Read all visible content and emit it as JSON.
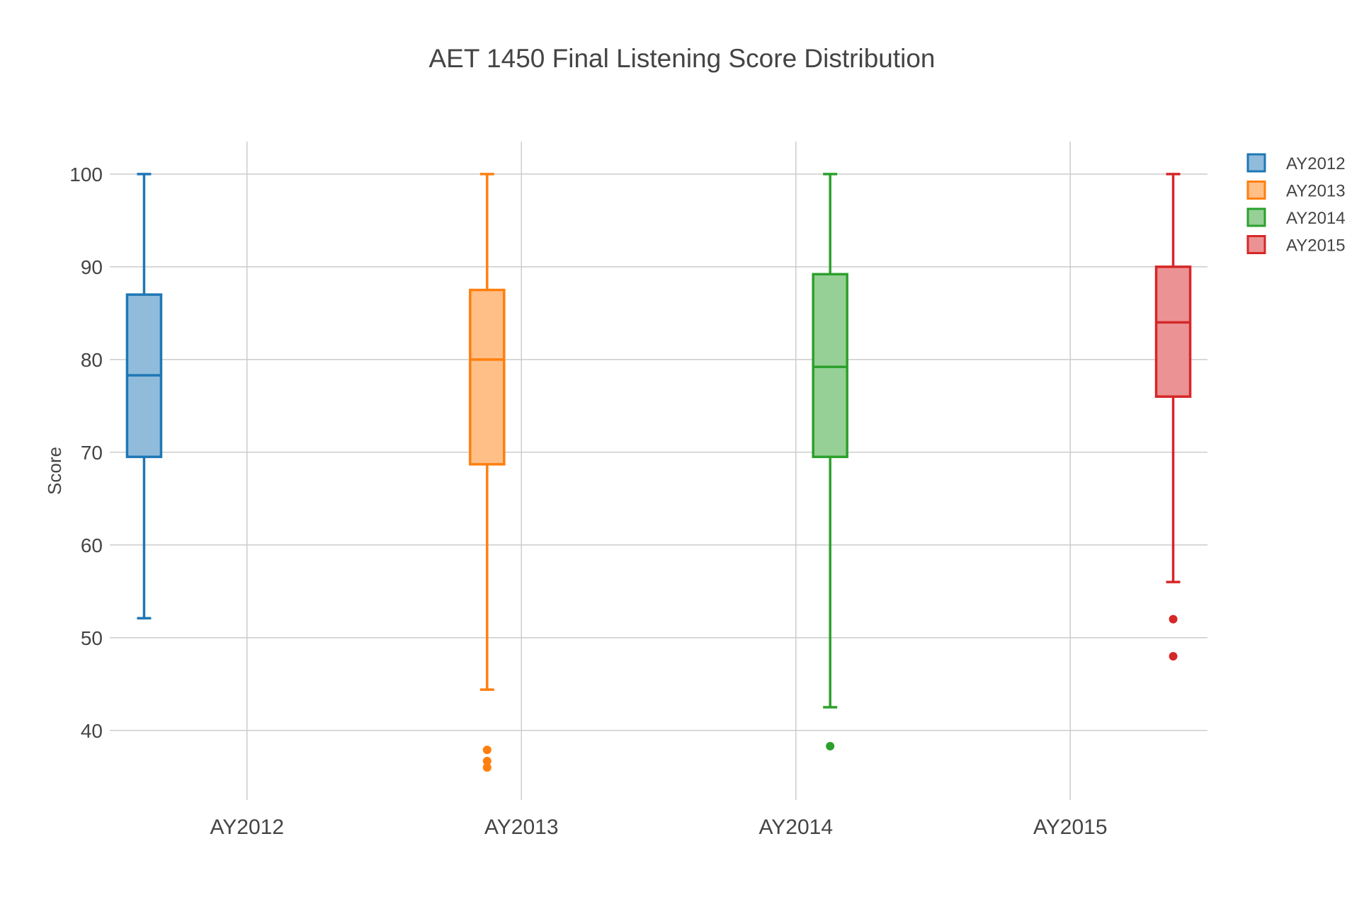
{
  "chart_data": {
    "type": "box",
    "title": "AET 1450 Final Listening Score Distribution",
    "xlabel": "",
    "ylabel": "Score",
    "categories": [
      "AY2012",
      "AY2013",
      "AY2014",
      "AY2015"
    ],
    "ylim": [
      32.5,
      103.5
    ],
    "yticks": [
      40,
      50,
      60,
      70,
      80,
      90,
      100
    ],
    "grid": true,
    "legend_position": "top-right",
    "series": [
      {
        "name": "AY2012",
        "color": "#1f77b4",
        "fill": "#90bbdb",
        "whisker_low": 52.1,
        "q1": 69.5,
        "median": 78.3,
        "q3": 87,
        "whisker_high": 100,
        "outliers": []
      },
      {
        "name": "AY2013",
        "color": "#ff7f0e",
        "fill": "#ffbf87",
        "whisker_low": 44.4,
        "q1": 68.7,
        "median": 80,
        "q3": 87.5,
        "whisker_high": 100,
        "outliers": [
          37.9,
          36.7,
          36
        ]
      },
      {
        "name": "AY2014",
        "color": "#2ca02c",
        "fill": "#96d096",
        "whisker_low": 42.5,
        "q1": 69.5,
        "median": 79.2,
        "q3": 89.2,
        "whisker_high": 100,
        "outliers": [
          38.3
        ]
      },
      {
        "name": "AY2015",
        "color": "#d62728",
        "fill": "#eb9394",
        "whisker_low": 56,
        "q1": 76,
        "median": 84,
        "q3": 90,
        "whisker_high": 100,
        "outliers": [
          52,
          48
        ]
      }
    ]
  }
}
